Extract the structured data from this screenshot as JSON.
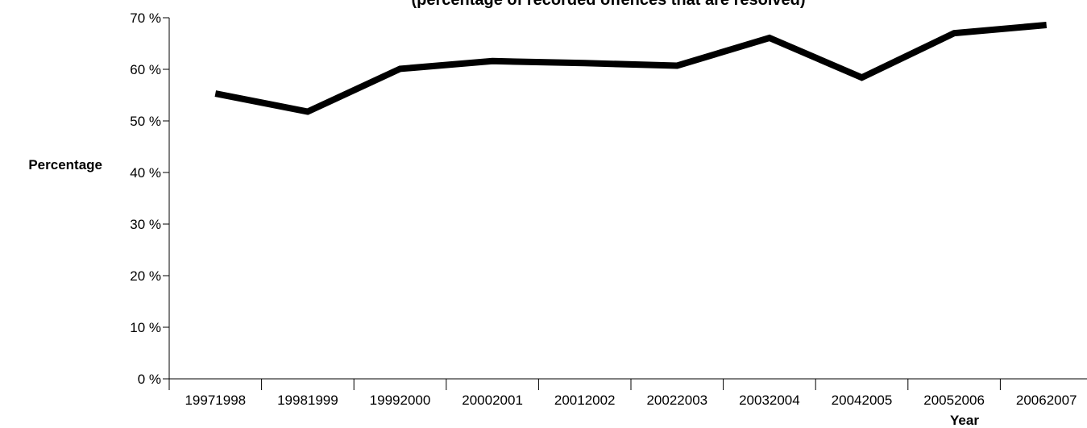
{
  "chart_data": {
    "type": "line",
    "title": "(percentage of recorded offences that are resolved)",
    "xlabel": "Year",
    "ylabel": "Percentage",
    "categories": [
      "19971998",
      "19981999",
      "19992000",
      "20002001",
      "20012002",
      "20022003",
      "20032004",
      "20042005",
      "20052006",
      "20062007"
    ],
    "series": [
      {
        "values": [
          55.3,
          51.8,
          60.1,
          61.6,
          61.2,
          60.7,
          66.1,
          58.4,
          67.0,
          68.6
        ]
      }
    ],
    "ylim": [
      0,
      70
    ],
    "yticks": [
      0,
      10,
      20,
      30,
      40,
      50,
      60,
      70
    ],
    "ytick_labels": [
      "0 %",
      "10 %",
      "20 %",
      "30 %",
      "40 %",
      "50 %",
      "60 %",
      "70 %"
    ],
    "grid": false,
    "line_color": "#000000"
  }
}
